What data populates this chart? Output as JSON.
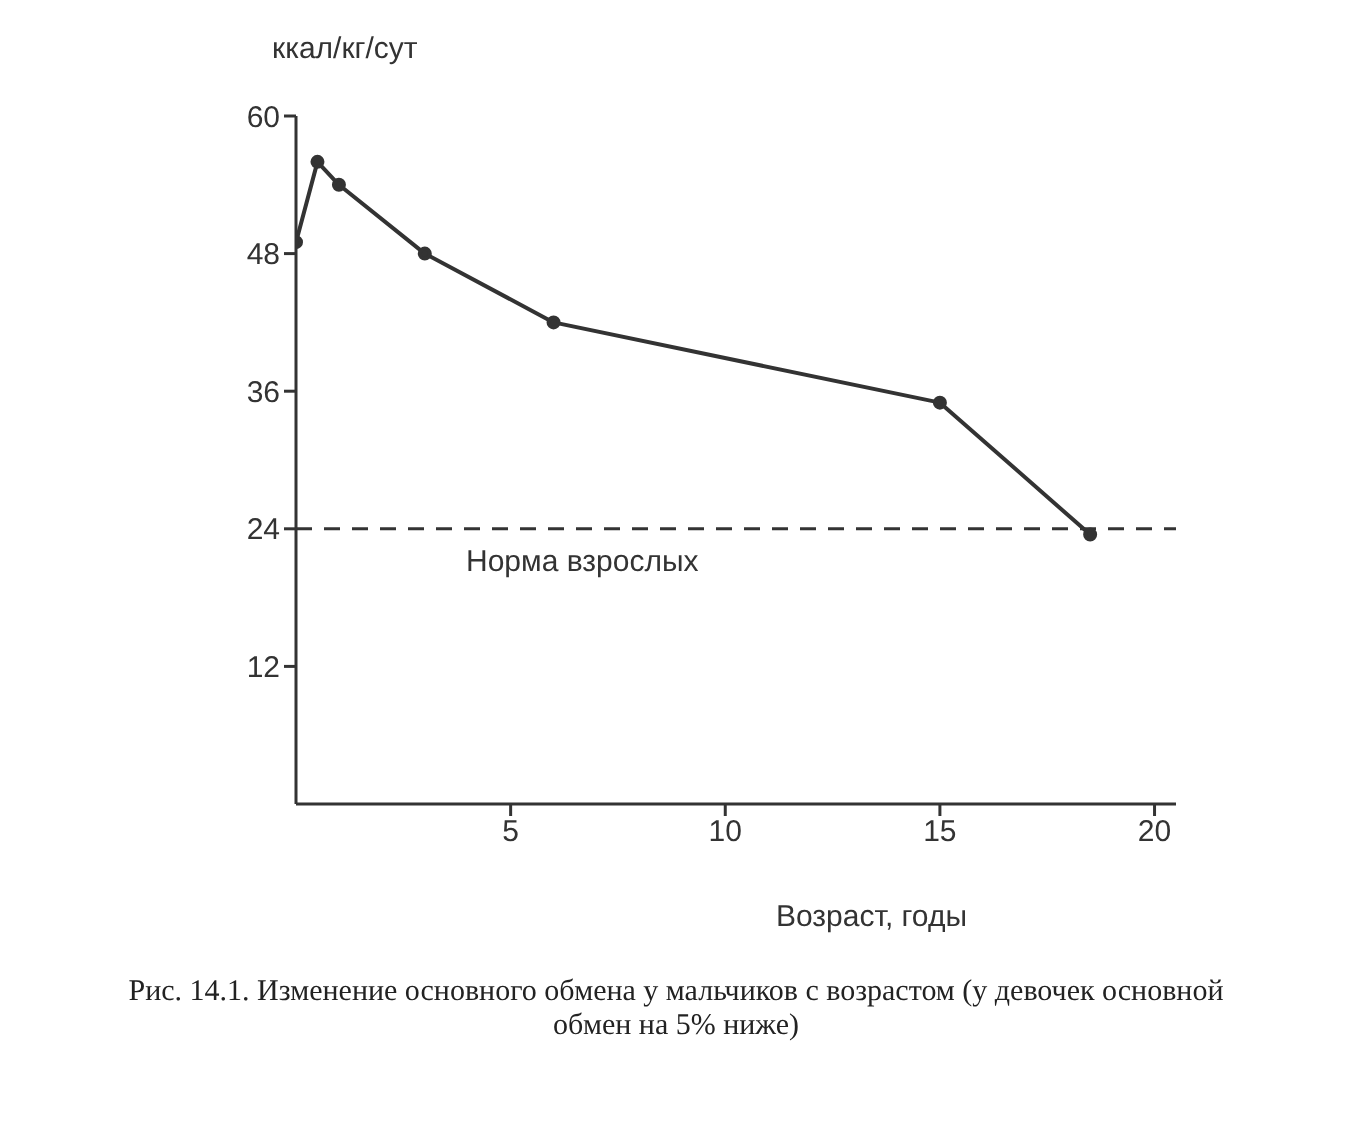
{
  "chart_data": {
    "type": "line",
    "xlabel": "Возраст, годы",
    "ylabel": "ккал/кг/сут",
    "x": [
      0,
      0.5,
      1,
      3,
      6,
      15,
      18.5
    ],
    "series": [
      {
        "color": "#333333",
        "values": [
          49,
          56,
          54,
          48,
          42,
          35,
          23.5
        ]
      }
    ],
    "xlim": [
      0,
      20.5
    ],
    "xticks": [
      5,
      10,
      15,
      20
    ],
    "ylim": [
      0,
      60
    ],
    "yticks": [
      12,
      24,
      36,
      48,
      60
    ],
    "ref_lines": [
      {
        "axis": "y",
        "value": 24,
        "label": "Норма взрослых",
        "line_style": "dashed",
        "color": "#333333"
      }
    ],
    "annotations": [
      "Рис. 14.1. Изменение основного обмена у мальчиков с возрастом (у девочек основной обмен на 5% ниже)"
    ],
    "grid": false,
    "legend": false,
    "marker": "circle",
    "line_style": "solid"
  }
}
